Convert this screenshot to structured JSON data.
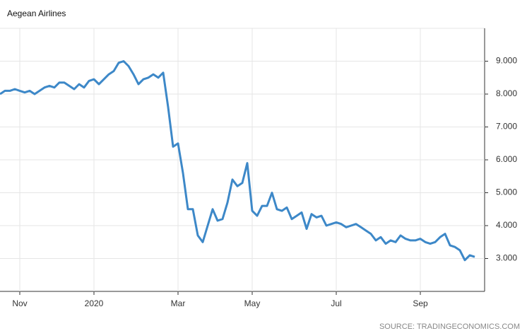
{
  "chart_data": {
    "type": "line",
    "title": "Aegean Airlines",
    "source": "SOURCE: TRADINGECONOMICS.COM",
    "categories": [
      null,
      null,
      null,
      null,
      "Nov",
      null,
      null,
      null,
      null,
      null,
      null,
      null,
      null,
      null,
      null,
      null,
      null,
      null,
      null,
      "2020",
      null,
      null,
      null,
      null,
      null,
      null,
      null,
      null,
      null,
      null,
      null,
      null,
      null,
      null,
      null,
      null,
      "Mar",
      null,
      null,
      null,
      null,
      null,
      null,
      null,
      null,
      null,
      null,
      null,
      null,
      null,
      null,
      "May",
      null,
      null,
      null,
      null,
      null,
      null,
      null,
      null,
      null,
      null,
      null,
      null,
      null,
      null,
      null,
      null,
      "Jul",
      null,
      null,
      null,
      null,
      null,
      null,
      null,
      null,
      null,
      null,
      null,
      null,
      null,
      null,
      null,
      null,
      "Sep",
      null,
      null,
      null,
      null,
      null,
      null,
      null,
      null,
      null,
      null,
      null
    ],
    "series": [
      {
        "name": "Aegean Airlines",
        "color": "#3d88c8",
        "values": [
          8.0,
          8.1,
          8.1,
          8.15,
          8.1,
          8.05,
          8.1,
          8.0,
          8.1,
          8.2,
          8.25,
          8.2,
          8.35,
          8.35,
          8.25,
          8.15,
          8.3,
          8.2,
          8.4,
          8.45,
          8.3,
          8.45,
          8.6,
          8.7,
          8.95,
          9.0,
          8.85,
          8.6,
          8.3,
          8.45,
          8.5,
          8.6,
          8.5,
          8.65,
          7.6,
          6.4,
          6.5,
          5.6,
          4.5,
          4.5,
          3.7,
          3.5,
          4.0,
          4.5,
          4.15,
          4.2,
          4.7,
          5.4,
          5.2,
          5.3,
          5.9,
          4.45,
          4.3,
          4.6,
          4.6,
          5.0,
          4.5,
          4.45,
          4.55,
          4.2,
          4.3,
          4.4,
          3.9,
          4.35,
          4.25,
          4.3,
          4.0,
          4.05,
          4.1,
          4.05,
          3.95,
          4.0,
          4.05,
          3.95,
          3.85,
          3.75,
          3.55,
          3.65,
          3.45,
          3.55,
          3.5,
          3.7,
          3.6,
          3.55,
          3.55,
          3.6,
          3.5,
          3.45,
          3.5,
          3.65,
          3.75,
          3.4,
          3.35,
          3.25,
          2.95,
          3.1,
          3.05
        ]
      }
    ],
    "ylim": [
      2,
      10
    ],
    "yticks": [
      {
        "value": 3,
        "label": "3.000"
      },
      {
        "value": 4,
        "label": "4.000"
      },
      {
        "value": 5,
        "label": "5.000"
      },
      {
        "value": 6,
        "label": "6.000"
      },
      {
        "value": 7,
        "label": "7.000"
      },
      {
        "value": 8,
        "label": "8.000"
      },
      {
        "value": 9,
        "label": "9.000"
      }
    ],
    "grid": true
  }
}
